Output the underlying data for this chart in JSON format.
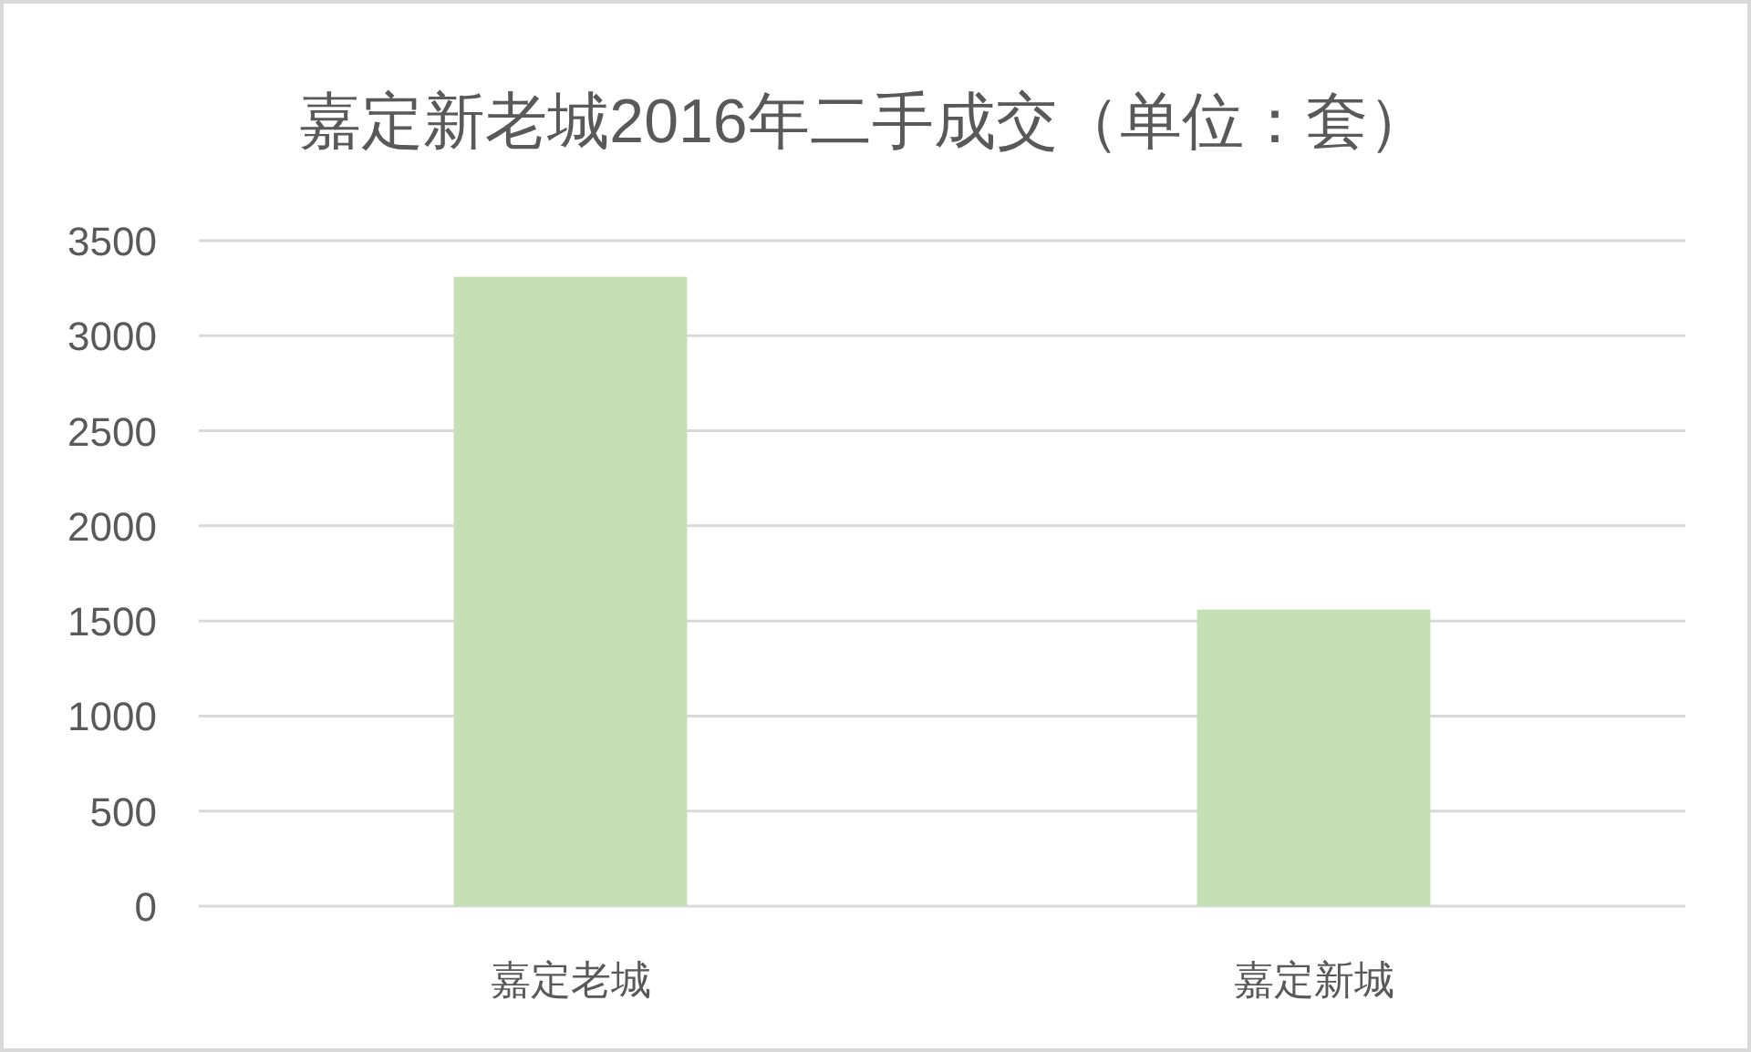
{
  "chart_data": {
    "type": "bar",
    "title": "嘉定新老城2016年二手成交（单位：套）",
    "categories": [
      "嘉定老城",
      "嘉定新城"
    ],
    "values": [
      3310,
      1560
    ],
    "color": "#c5e0b4",
    "ylim": [
      0,
      3500
    ],
    "yticks": [
      0,
      500,
      1000,
      1500,
      2000,
      2500,
      3000,
      3500
    ],
    "grid": "y"
  }
}
